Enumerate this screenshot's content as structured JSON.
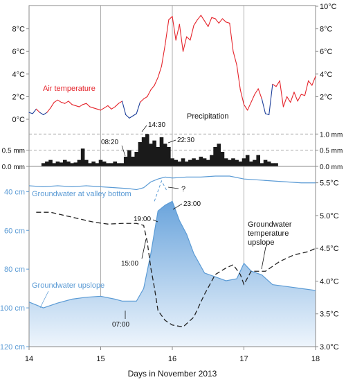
{
  "chart_data": [
    {
      "type": "line",
      "panel": "air-temperature",
      "series": [
        {
          "name": "Air temperature",
          "x": [
            14.0,
            14.05,
            14.1,
            14.15,
            14.2,
            14.25,
            14.3,
            14.35,
            14.4,
            14.45,
            14.5,
            14.55,
            14.6,
            14.65,
            14.7,
            14.75,
            14.8,
            14.85,
            14.9,
            14.95,
            15.0,
            15.05,
            15.1,
            15.15,
            15.2,
            15.25,
            15.3,
            15.35,
            15.4,
            15.45,
            15.5,
            15.55,
            15.6,
            15.65,
            15.7,
            15.75,
            15.8,
            15.85,
            15.9,
            15.95,
            16.0,
            16.05,
            16.1,
            16.15,
            16.2,
            16.25,
            16.3,
            16.35,
            16.4,
            16.45,
            16.5,
            16.55,
            16.6,
            16.65,
            16.7,
            16.75,
            16.8,
            16.85,
            16.9,
            16.95,
            17.0,
            17.05,
            17.1,
            17.15,
            17.2,
            17.25,
            17.3,
            17.35,
            17.4,
            17.45,
            17.5,
            17.55,
            17.6,
            17.65,
            17.7,
            17.75,
            17.8,
            17.85,
            17.9,
            17.95,
            18.0
          ],
          "y": [
            0.6,
            0.5,
            0.9,
            0.6,
            0.4,
            0.6,
            1.0,
            1.5,
            1.7,
            1.5,
            1.4,
            1.6,
            1.3,
            1.2,
            1.1,
            1.3,
            1.4,
            1.1,
            1.0,
            0.9,
            0.8,
            1.0,
            1.2,
            0.9,
            1.1,
            1.4,
            1.6,
            0.4,
            0.1,
            0.3,
            0.5,
            1.5,
            1.8,
            2.0,
            2.6,
            3.0,
            3.7,
            4.7,
            6.6,
            8.8,
            9.1,
            7.0,
            8.4,
            6.0,
            7.3,
            7.0,
            8.3,
            8.8,
            9.2,
            8.7,
            8.2,
            9.0,
            8.9,
            8.5,
            8.9,
            8.6,
            8.5,
            6.0,
            4.8,
            2.6,
            1.3,
            0.8,
            1.5,
            2.2,
            2.7,
            1.8,
            0.5,
            0.4,
            3.1,
            2.9,
            3.4,
            1.1,
            2.0,
            1.5,
            2.4,
            1.6,
            2.2,
            2.1,
            3.4,
            3.0,
            3.8
          ]
        }
      ],
      "title": "Air temperature",
      "ylim": [
        0,
        10
      ],
      "left_tick_labels": [
        "0°C",
        "2°C",
        "4°C",
        "6°C",
        "8°C"
      ],
      "right_tick_labels": [
        "2°C",
        "4°C",
        "6°C",
        "8°C",
        "10°C"
      ]
    },
    {
      "type": "bar",
      "panel": "precipitation",
      "series": [
        {
          "name": "Precipitation",
          "x": [
            14.2,
            14.25,
            14.3,
            14.35,
            14.4,
            14.45,
            14.5,
            14.55,
            14.6,
            14.65,
            14.7,
            14.75,
            14.8,
            14.85,
            14.9,
            14.95,
            15.0,
            15.05,
            15.1,
            15.15,
            15.2,
            15.25,
            15.3,
            15.35,
            15.4,
            15.45,
            15.5,
            15.55,
            15.6,
            15.65,
            15.7,
            15.75,
            15.8,
            15.85,
            15.9,
            15.95,
            16.0,
            16.05,
            16.1,
            16.15,
            16.2,
            16.25,
            16.3,
            16.35,
            16.4,
            16.45,
            16.5,
            16.55,
            16.6,
            16.65,
            16.7,
            16.75,
            16.8,
            16.85,
            16.9,
            16.95,
            17.0,
            17.05,
            17.1,
            17.15,
            17.2,
            17.25,
            17.3,
            17.35,
            17.4,
            17.45
          ],
          "y": [
            0.1,
            0.15,
            0.2,
            0.1,
            0.15,
            0.12,
            0.2,
            0.15,
            0.1,
            0.12,
            0.2,
            0.55,
            0.2,
            0.1,
            0.15,
            0.1,
            0.2,
            0.15,
            0.1,
            0.1,
            0.15,
            0.1,
            0.1,
            0.3,
            0.5,
            0.3,
            0.45,
            0.75,
            0.9,
            1.0,
            0.7,
            0.8,
            0.6,
            0.9,
            0.7,
            0.6,
            0.25,
            0.2,
            0.15,
            0.25,
            0.15,
            0.2,
            0.25,
            0.2,
            0.3,
            0.25,
            0.2,
            0.35,
            0.6,
            0.7,
            0.45,
            0.25,
            0.2,
            0.25,
            0.2,
            0.15,
            0.25,
            0.35,
            0.15,
            0.2,
            0.35,
            0.1,
            0.2,
            0.15,
            0.1,
            0.1
          ]
        }
      ],
      "title": "Precipitation",
      "ylim": [
        0,
        1.2
      ],
      "left_tick_labels": [
        "0.0 mm",
        "0.5 mm"
      ],
      "right_tick_labels": [
        "0.0 mm",
        "0.5 mm",
        "1.0 mm"
      ]
    },
    {
      "type": "area",
      "panel": "groundwater",
      "series": [
        {
          "name": "Groundwater at valley bottom",
          "axis": "depth_cm",
          "x": [
            14.0,
            14.2,
            14.4,
            14.6,
            14.8,
            15.0,
            15.2,
            15.4,
            15.5,
            15.6,
            15.7,
            15.8,
            15.9,
            16.0,
            16.2,
            16.4,
            16.6,
            16.8,
            17.0,
            17.2,
            17.4,
            17.6,
            17.8,
            18.0
          ],
          "y": [
            37,
            37.5,
            37,
            37.5,
            37,
            37.5,
            38,
            38.5,
            39,
            38,
            35,
            33.5,
            32.5,
            33,
            32.5,
            32.5,
            32,
            32,
            33.5,
            34,
            34.5,
            35,
            35.5,
            35.5
          ]
        },
        {
          "name": "Groundwater upslope",
          "axis": "depth_cm",
          "fill": true,
          "x": [
            14.0,
            14.2,
            14.4,
            14.6,
            14.8,
            15.0,
            15.2,
            15.3,
            15.5,
            15.6,
            15.7,
            15.8,
            15.9,
            16.0,
            16.1,
            16.2,
            16.3,
            16.45,
            16.6,
            16.75,
            16.9,
            17.0,
            17.1,
            17.25,
            17.4,
            17.6,
            17.8,
            18.0
          ],
          "y": [
            97,
            100,
            97.5,
            95.5,
            94.5,
            94,
            95.5,
            96.5,
            96.5,
            90,
            72,
            50,
            47,
            45,
            55,
            62,
            72,
            82,
            84,
            86,
            85,
            77,
            81,
            83,
            88,
            89,
            90,
            91
          ]
        },
        {
          "name": "Groundwater temperature upslope",
          "axis": "temperature_c",
          "dashed": true,
          "x": [
            14.1,
            14.3,
            14.5,
            14.7,
            14.9,
            15.1,
            15.3,
            15.5,
            15.6,
            15.65,
            15.7,
            15.75,
            15.8,
            15.9,
            16.0,
            16.15,
            16.3,
            16.45,
            16.6,
            16.75,
            16.85,
            16.95,
            17.0,
            17.1,
            17.3,
            17.5,
            17.7,
            17.9,
            18.0
          ],
          "y": [
            5.05,
            5.05,
            5.0,
            4.95,
            4.9,
            4.87,
            4.88,
            4.88,
            4.85,
            4.6,
            4.2,
            3.9,
            3.55,
            3.4,
            3.33,
            3.3,
            3.45,
            3.8,
            4.1,
            4.2,
            4.25,
            4.1,
            3.95,
            4.15,
            4.15,
            4.3,
            4.4,
            4.45,
            4.5
          ]
        },
        {
          "name": "",
          "axis": "depth_cm",
          "dashed": true,
          "x": [
            15.75,
            15.85,
            15.93
          ],
          "y": [
            45,
            34.5,
            40
          ]
        }
      ],
      "xlabel": "Days in November 2013",
      "xlim": [
        14,
        18
      ],
      "x_tick_labels": [
        "14",
        "15",
        "16",
        "17",
        "18"
      ],
      "ylim_depth_cm": [
        120,
        27
      ],
      "depth_tick_labels": [
        "40 cm",
        "60 cm",
        "80 cm",
        "100 cm",
        "120 cm"
      ],
      "ylim_temperature_c": [
        3.0,
        5.75
      ],
      "temperature_tick_labels": [
        "3.0°C",
        "3.5°C",
        "4.0°C",
        "4.5°C",
        "5.0°C",
        "5.5°C"
      ],
      "annotations": [
        "08:20",
        "14:30",
        "22:30",
        "?",
        "23:00",
        "19:00",
        "15:00",
        "07:00"
      ],
      "temperature_label_lines": [
        "Groundwater",
        "temperature",
        "upslope"
      ]
    }
  ],
  "colors": {
    "air_temp": "#e5242b",
    "air_temp_low": "#1d3f9a",
    "groundwater": "#5b9bd5",
    "area_fill_top": "#6aa4dc",
    "area_fill_bottom": "#eef5fc",
    "axis": "#888888",
    "text": "#111111"
  }
}
